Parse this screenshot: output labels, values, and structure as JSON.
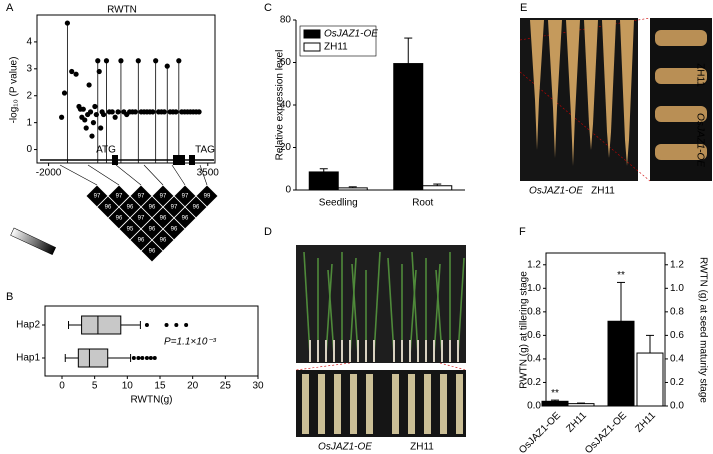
{
  "panel_labels": [
    "A",
    "B",
    "C",
    "D",
    "E",
    "F"
  ],
  "photos": {
    "D": {
      "labels": [
        "OsJAZ1-OE",
        "ZH11"
      ]
    },
    "E": {
      "labels": [
        "OsJAZ1-OE",
        "ZH11"
      ],
      "inset_labels": [
        "ZH11",
        "OsJAZ1-OE"
      ]
    }
  },
  "chart_data": [
    {
      "type": "scatter",
      "title": "RWTN",
      "y_label": "-log₁₀ (P value)",
      "color": "#000",
      "x": [
        -1550,
        -1450,
        -1350,
        -1200,
        -1050,
        -950,
        -900,
        -850,
        -800,
        -750,
        -700,
        -650,
        -600,
        -550,
        -500,
        -450,
        -400,
        -350,
        -300,
        -250,
        -200,
        -150,
        -100,
        0,
        100,
        200,
        300,
        400,
        500,
        600,
        700,
        800,
        900,
        1000,
        1100,
        1200,
        1300,
        1400,
        1500,
        1600,
        1700,
        1800,
        1900,
        2000,
        2100,
        2200,
        2300,
        2400,
        2500,
        2600,
        2700,
        2800,
        2900,
        3000,
        3100,
        3200
      ],
      "values": [
        1.2,
        2.1,
        4.7,
        2.9,
        2.8,
        1.6,
        1.5,
        1.2,
        1.5,
        1.1,
        0.8,
        1.3,
        2.4,
        1.4,
        0.5,
        1.0,
        1.6,
        1.3,
        3.3,
        2.9,
        0.8,
        1.4,
        1.3,
        3.3,
        1.4,
        1.4,
        1.2,
        1.4,
        3.3,
        1.4,
        1.3,
        1.4,
        1.4,
        1.4,
        3.3,
        1.4,
        1.4,
        1.4,
        1.4,
        1.4,
        3.3,
        1.4,
        1.4,
        1.4,
        3.1,
        1.4,
        1.4,
        1.4,
        3.3,
        1.4,
        1.4,
        1.4,
        1.4,
        1.4,
        1.4,
        1.4
      ],
      "xlim": [
        -2400,
        3750
      ],
      "xticks": [
        -2000,
        3500
      ],
      "ylim": [
        -0.5,
        5
      ],
      "yticks": [
        0,
        1,
        2,
        3,
        4
      ],
      "annotations": [
        "ATG",
        "TAG"
      ],
      "ld_values": [
        [
          97,
          97,
          97,
          97,
          97,
          99
        ],
        [
          96,
          96,
          96,
          97,
          96
        ],
        [
          96,
          97,
          96,
          96
        ],
        [
          95,
          96,
          96
        ],
        [
          96,
          96
        ],
        [
          96
        ]
      ]
    },
    {
      "type": "box",
      "x_label": "RWTN(g)",
      "color": "#c8c8c8",
      "categories": [
        "Hap2",
        "Hap1"
      ],
      "boxes": [
        {
          "whislo": 1,
          "q1": 3,
          "med": 5.5,
          "q3": 9,
          "whishi": 12,
          "fliers": [
            13,
            16,
            17.5,
            19
          ]
        },
        {
          "whislo": 0.5,
          "q1": 2.5,
          "med": 4.2,
          "q3": 7,
          "whishi": 10.5,
          "fliers": [
            11,
            11.7,
            12.3,
            13,
            13.6,
            14.2
          ]
        }
      ],
      "xlim": [
        -2.6,
        30
      ],
      "xticks": [
        0,
        5,
        10,
        15,
        20,
        25,
        30
      ],
      "annotation": "P=1.1×10⁻³"
    },
    {
      "type": "bar",
      "y_label": "Relative expression level",
      "categories": [
        "Seedling",
        "Root"
      ],
      "series": [
        {
          "name": "OsJAZ1-OE",
          "color": "#000000",
          "values": [
            8.5,
            59.5
          ],
          "errors": [
            1.5,
            12
          ]
        },
        {
          "name": "ZH11",
          "color": "#ffffff",
          "values": [
            1,
            2
          ],
          "errors": [
            0.5,
            0.8
          ]
        }
      ],
      "ylim": [
        0,
        80
      ],
      "yticks": [
        0,
        20,
        40,
        60,
        80
      ],
      "legend": "upper left"
    },
    {
      "type": "bar2",
      "y_label": "RWTN (g) at tillering stage",
      "y2_label": "RWTN (g) at seed maturity stage",
      "categories": [
        "OsJAZ1-OE",
        "ZH11",
        "OsJAZ1-OE",
        "ZH11"
      ],
      "colors": [
        "#000000",
        "#ffffff",
        "#000000",
        "#ffffff"
      ],
      "series": [
        {
          "values": [
            0.04,
            0.02,
            null,
            null
          ],
          "errors": [
            0.01,
            0.005,
            null,
            null
          ]
        },
        {
          "axis": "y2",
          "values": [
            null,
            null,
            0.72,
            0.45
          ],
          "errors": [
            null,
            null,
            0.33,
            0.15
          ]
        }
      ],
      "annotations": [
        "**",
        null,
        "**",
        null
      ],
      "ylim": [
        0,
        1.3
      ],
      "yticks": [
        {
          "value": 0,
          "label": "0.0"
        },
        0.2,
        0.4,
        0.6,
        0.8,
        {
          "value": 1,
          "label": "1.0"
        },
        1.2
      ],
      "y2lim": [
        0,
        1.3
      ],
      "y2ticks": [
        {
          "value": 0,
          "label": "0.0"
        },
        0.2,
        0.4,
        0.6,
        0.8,
        {
          "value": 1,
          "label": "1.0"
        },
        1.2
      ]
    }
  ]
}
